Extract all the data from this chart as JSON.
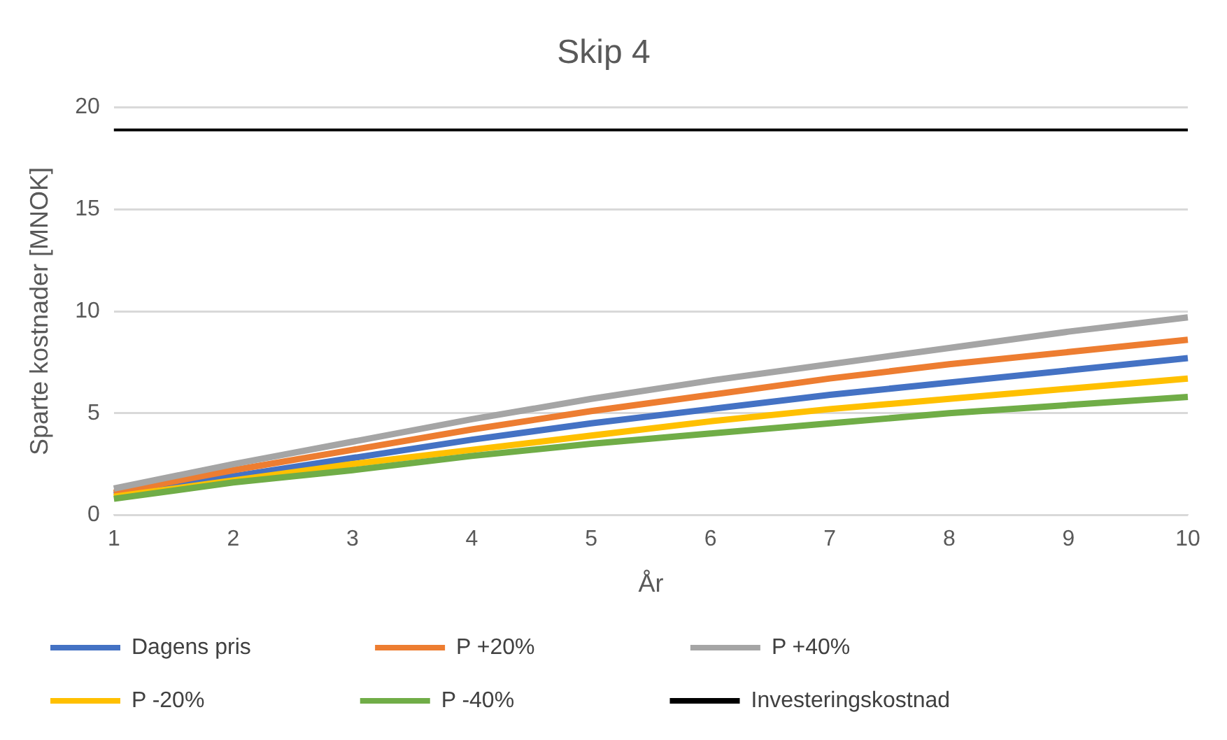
{
  "chart_data": {
    "type": "line",
    "title": "Skip 4",
    "xlabel": "År",
    "ylabel": "Sparte kostnader [MNOK]",
    "categories": [
      "1",
      "2",
      "3",
      "4",
      "5",
      "6",
      "7",
      "8",
      "9",
      "10"
    ],
    "series": [
      {
        "name": "Dagens pris",
        "color": "#4472c4",
        "values": [
          1.0,
          1.9,
          2.8,
          3.7,
          4.5,
          5.2,
          5.9,
          6.5,
          7.1,
          7.7
        ]
      },
      {
        "name": "P +20%",
        "color": "#ed7d31",
        "values": [
          1.1,
          2.2,
          3.2,
          4.2,
          5.1,
          5.9,
          6.7,
          7.4,
          8.0,
          8.6
        ]
      },
      {
        "name": "P +40%",
        "color": "#a5a5a5",
        "values": [
          1.3,
          2.5,
          3.6,
          4.7,
          5.7,
          6.6,
          7.4,
          8.2,
          9.0,
          9.7
        ]
      },
      {
        "name": "P -20%",
        "color": "#ffc000",
        "values": [
          0.9,
          1.7,
          2.5,
          3.2,
          3.9,
          4.6,
          5.2,
          5.7,
          6.2,
          6.7
        ]
      },
      {
        "name": "P -40%",
        "color": "#70ad47",
        "values": [
          0.8,
          1.6,
          2.2,
          2.9,
          3.5,
          4.0,
          4.5,
          5.0,
          5.4,
          5.8
        ]
      },
      {
        "name": "Investeringskostnad",
        "color": "#000000",
        "values": [
          18.9,
          18.9,
          18.9,
          18.9,
          18.9,
          18.9,
          18.9,
          18.9,
          18.9,
          18.9
        ]
      }
    ],
    "ylim": [
      0,
      20
    ],
    "yticks": [
      0,
      5,
      10,
      15,
      20
    ],
    "grid": "y",
    "legend": "bottom",
    "marker": "none",
    "line_style": "solid"
  }
}
